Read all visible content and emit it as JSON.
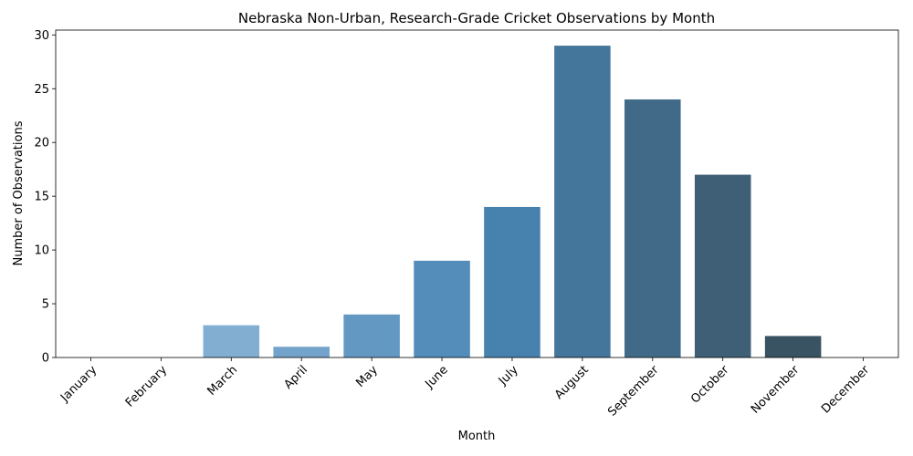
{
  "chart_data": {
    "type": "bar",
    "title": "Nebraska Non-Urban, Research-Grade Cricket Observations by Month",
    "xlabel": "Month",
    "ylabel": "Number of Observations",
    "categories": [
      "January",
      "February",
      "March",
      "April",
      "May",
      "June",
      "July",
      "August",
      "September",
      "October",
      "November",
      "December"
    ],
    "values": [
      0,
      0,
      3,
      1,
      4,
      9,
      14,
      29,
      24,
      17,
      2,
      0
    ],
    "ylim": [
      0,
      30.45
    ],
    "yticks": [
      0,
      5,
      10,
      15,
      20,
      25,
      30
    ],
    "grid": false,
    "legend": "none",
    "colors": [
      "#a1c4e2",
      "#92b9dc",
      "#82aed2",
      "#73a3ca",
      "#6398c3",
      "#548cba",
      "#4781ae",
      "#44759b",
      "#416a88",
      "#3e5f75",
      "#3a5362",
      "#364850"
    ]
  }
}
